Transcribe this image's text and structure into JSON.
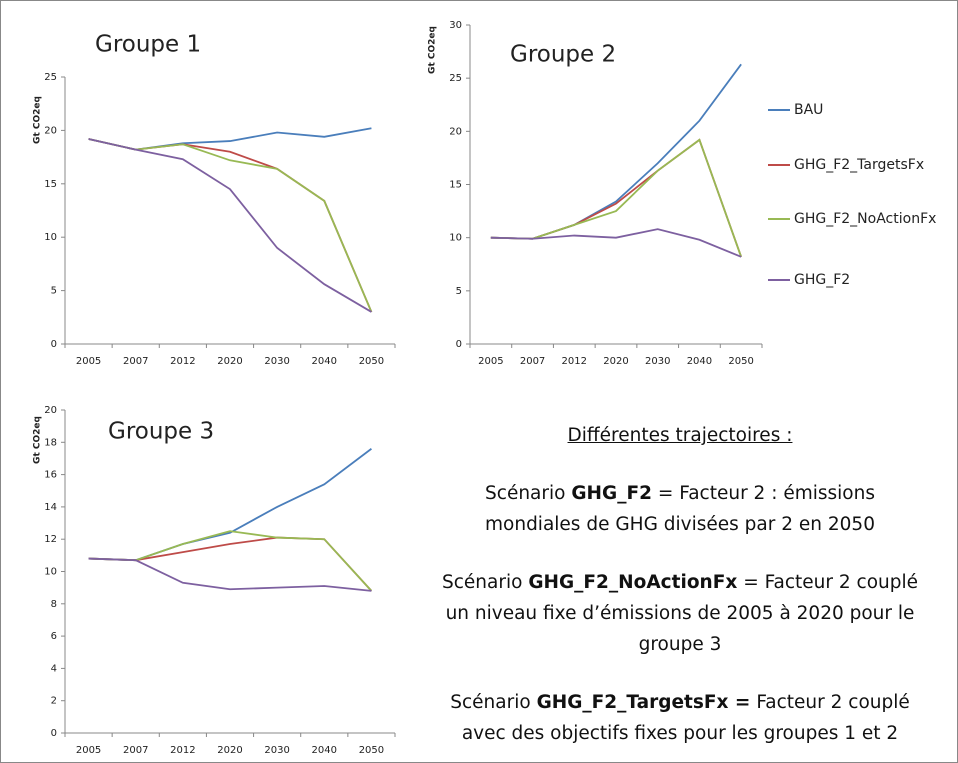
{
  "chart_data": [
    {
      "type": "line",
      "title": "Groupe 1",
      "y_label": "Gt CO2eq",
      "categories": [
        "2005",
        "2007",
        "2012",
        "2020",
        "2030",
        "2040",
        "2050"
      ],
      "ylim": [
        0,
        25
      ],
      "yticks": [
        0,
        5,
        10,
        15,
        20,
        25
      ],
      "series": [
        {
          "color": "#4a7ebb",
          "values": [
            19.2,
            18.2,
            18.8,
            19.0,
            19.8,
            19.4,
            20.2
          ]
        },
        {
          "color": "#be4b48",
          "values": [
            19.2,
            18.2,
            18.7,
            18.0,
            16.4,
            13.4,
            3.0
          ]
        },
        {
          "color": "#98b954",
          "values": [
            19.2,
            18.2,
            18.7,
            17.2,
            16.4,
            13.4,
            3.0
          ]
        },
        {
          "color": "#7d60a0",
          "values": [
            19.2,
            18.2,
            17.3,
            14.5,
            9.0,
            5.6,
            3.0
          ]
        }
      ]
    },
    {
      "type": "line",
      "title": "Groupe 2",
      "y_label": "Gt CO2eq",
      "categories": [
        "2005",
        "2007",
        "2012",
        "2020",
        "2030",
        "2040",
        "2050"
      ],
      "ylim": [
        0,
        30
      ],
      "yticks": [
        0,
        5,
        10,
        15,
        20,
        25,
        30
      ],
      "legend": "right",
      "series": [
        {
          "name": "BAU",
          "color": "#4a7ebb",
          "values": [
            10.0,
            9.9,
            11.2,
            13.4,
            17.0,
            21.0,
            26.3
          ]
        },
        {
          "name": "GHG_F2_TargetsFx",
          "color": "#be4b48",
          "values": [
            10.0,
            9.9,
            11.2,
            13.2,
            16.3,
            19.2,
            8.2
          ]
        },
        {
          "name": "GHG_F2_NoActionFx",
          "color": "#98b954",
          "values": [
            10.0,
            9.9,
            11.2,
            12.5,
            16.3,
            19.2,
            8.2
          ]
        },
        {
          "name": "GHG_F2",
          "color": "#7d60a0",
          "values": [
            10.0,
            9.9,
            10.2,
            10.0,
            10.8,
            9.8,
            8.2
          ]
        }
      ]
    },
    {
      "type": "line",
      "title": "Groupe 3",
      "y_label": "Gt CO2eq",
      "categories": [
        "2005",
        "2007",
        "2012",
        "2020",
        "2030",
        "2040",
        "2050"
      ],
      "ylim": [
        0,
        20
      ],
      "yticks": [
        0,
        2,
        4,
        6,
        8,
        10,
        12,
        14,
        16,
        18,
        20
      ],
      "series": [
        {
          "color": "#4a7ebb",
          "values": [
            10.8,
            10.7,
            11.7,
            12.4,
            14.0,
            15.4,
            17.6
          ]
        },
        {
          "color": "#be4b48",
          "values": [
            10.8,
            10.7,
            11.2,
            11.7,
            12.1,
            12.0,
            8.8
          ]
        },
        {
          "color": "#98b954",
          "values": [
            10.8,
            10.7,
            11.7,
            12.5,
            12.1,
            12.0,
            8.8
          ]
        },
        {
          "color": "#7d60a0",
          "values": [
            10.8,
            10.7,
            9.3,
            8.9,
            9.0,
            9.1,
            8.8
          ]
        }
      ]
    }
  ],
  "notes": {
    "heading": "Différentes trajectoires :",
    "paragraphs": [
      {
        "prefix": "Scénario",
        "keyword": "GHG_F2",
        "lines": [
          "= Facteur 2 : émissions",
          "mondiales de GHG divisées par 2 en 2050"
        ]
      },
      {
        "prefix": "Scénario",
        "keyword": "GHG_F2_NoActionFx",
        "lines": [
          "= Facteur 2 couplé",
          "un niveau fixe d’émissions de 2005 à 2020 pour le",
          "groupe 3"
        ]
      },
      {
        "prefix": "Scénario",
        "keyword": "GHG_F2_TargetsFx =",
        "lines": [
          "Facteur 2 couplé",
          "avec des objectifs fixes pour les groupes 1 et 2"
        ]
      }
    ]
  }
}
